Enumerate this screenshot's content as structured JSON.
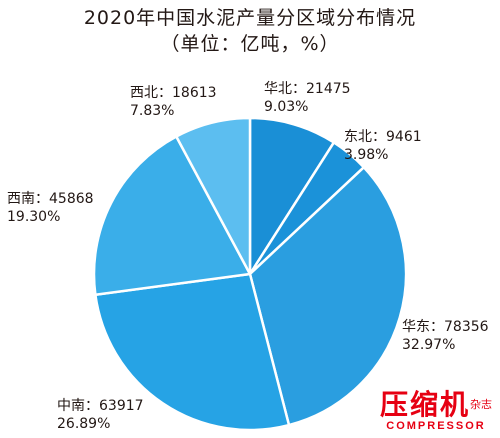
{
  "chart_data": {
    "type": "pie",
    "title": "2020年中国水泥产量分区域分布情况",
    "subtitle": "（单位：亿吨，%）",
    "slices": [
      {
        "name": "华北",
        "value": 21475,
        "percent": "9.03%",
        "color": "#1a8fd6"
      },
      {
        "name": "东北",
        "value": 9461,
        "percent": "3.98%",
        "color": "#1b92d9"
      },
      {
        "name": "华东",
        "value": 78356,
        "percent": "32.97%",
        "color": "#2a9ee0"
      },
      {
        "name": "中南",
        "value": 63917,
        "percent": "26.89%",
        "color": "#26a3e5"
      },
      {
        "name": "西南",
        "value": 45868,
        "percent": "19.30%",
        "color": "#3aaee9"
      },
      {
        "name": "西北",
        "value": 18613,
        "percent": "7.83%",
        "color": "#5cbef0"
      }
    ]
  },
  "logo": {
    "cn": "压缩机",
    "cn_small": "杂志",
    "en": "COMPRESSOR"
  },
  "colors": {
    "slice_border": "#ffffff",
    "text": "#231815",
    "logo": "#e60012"
  }
}
